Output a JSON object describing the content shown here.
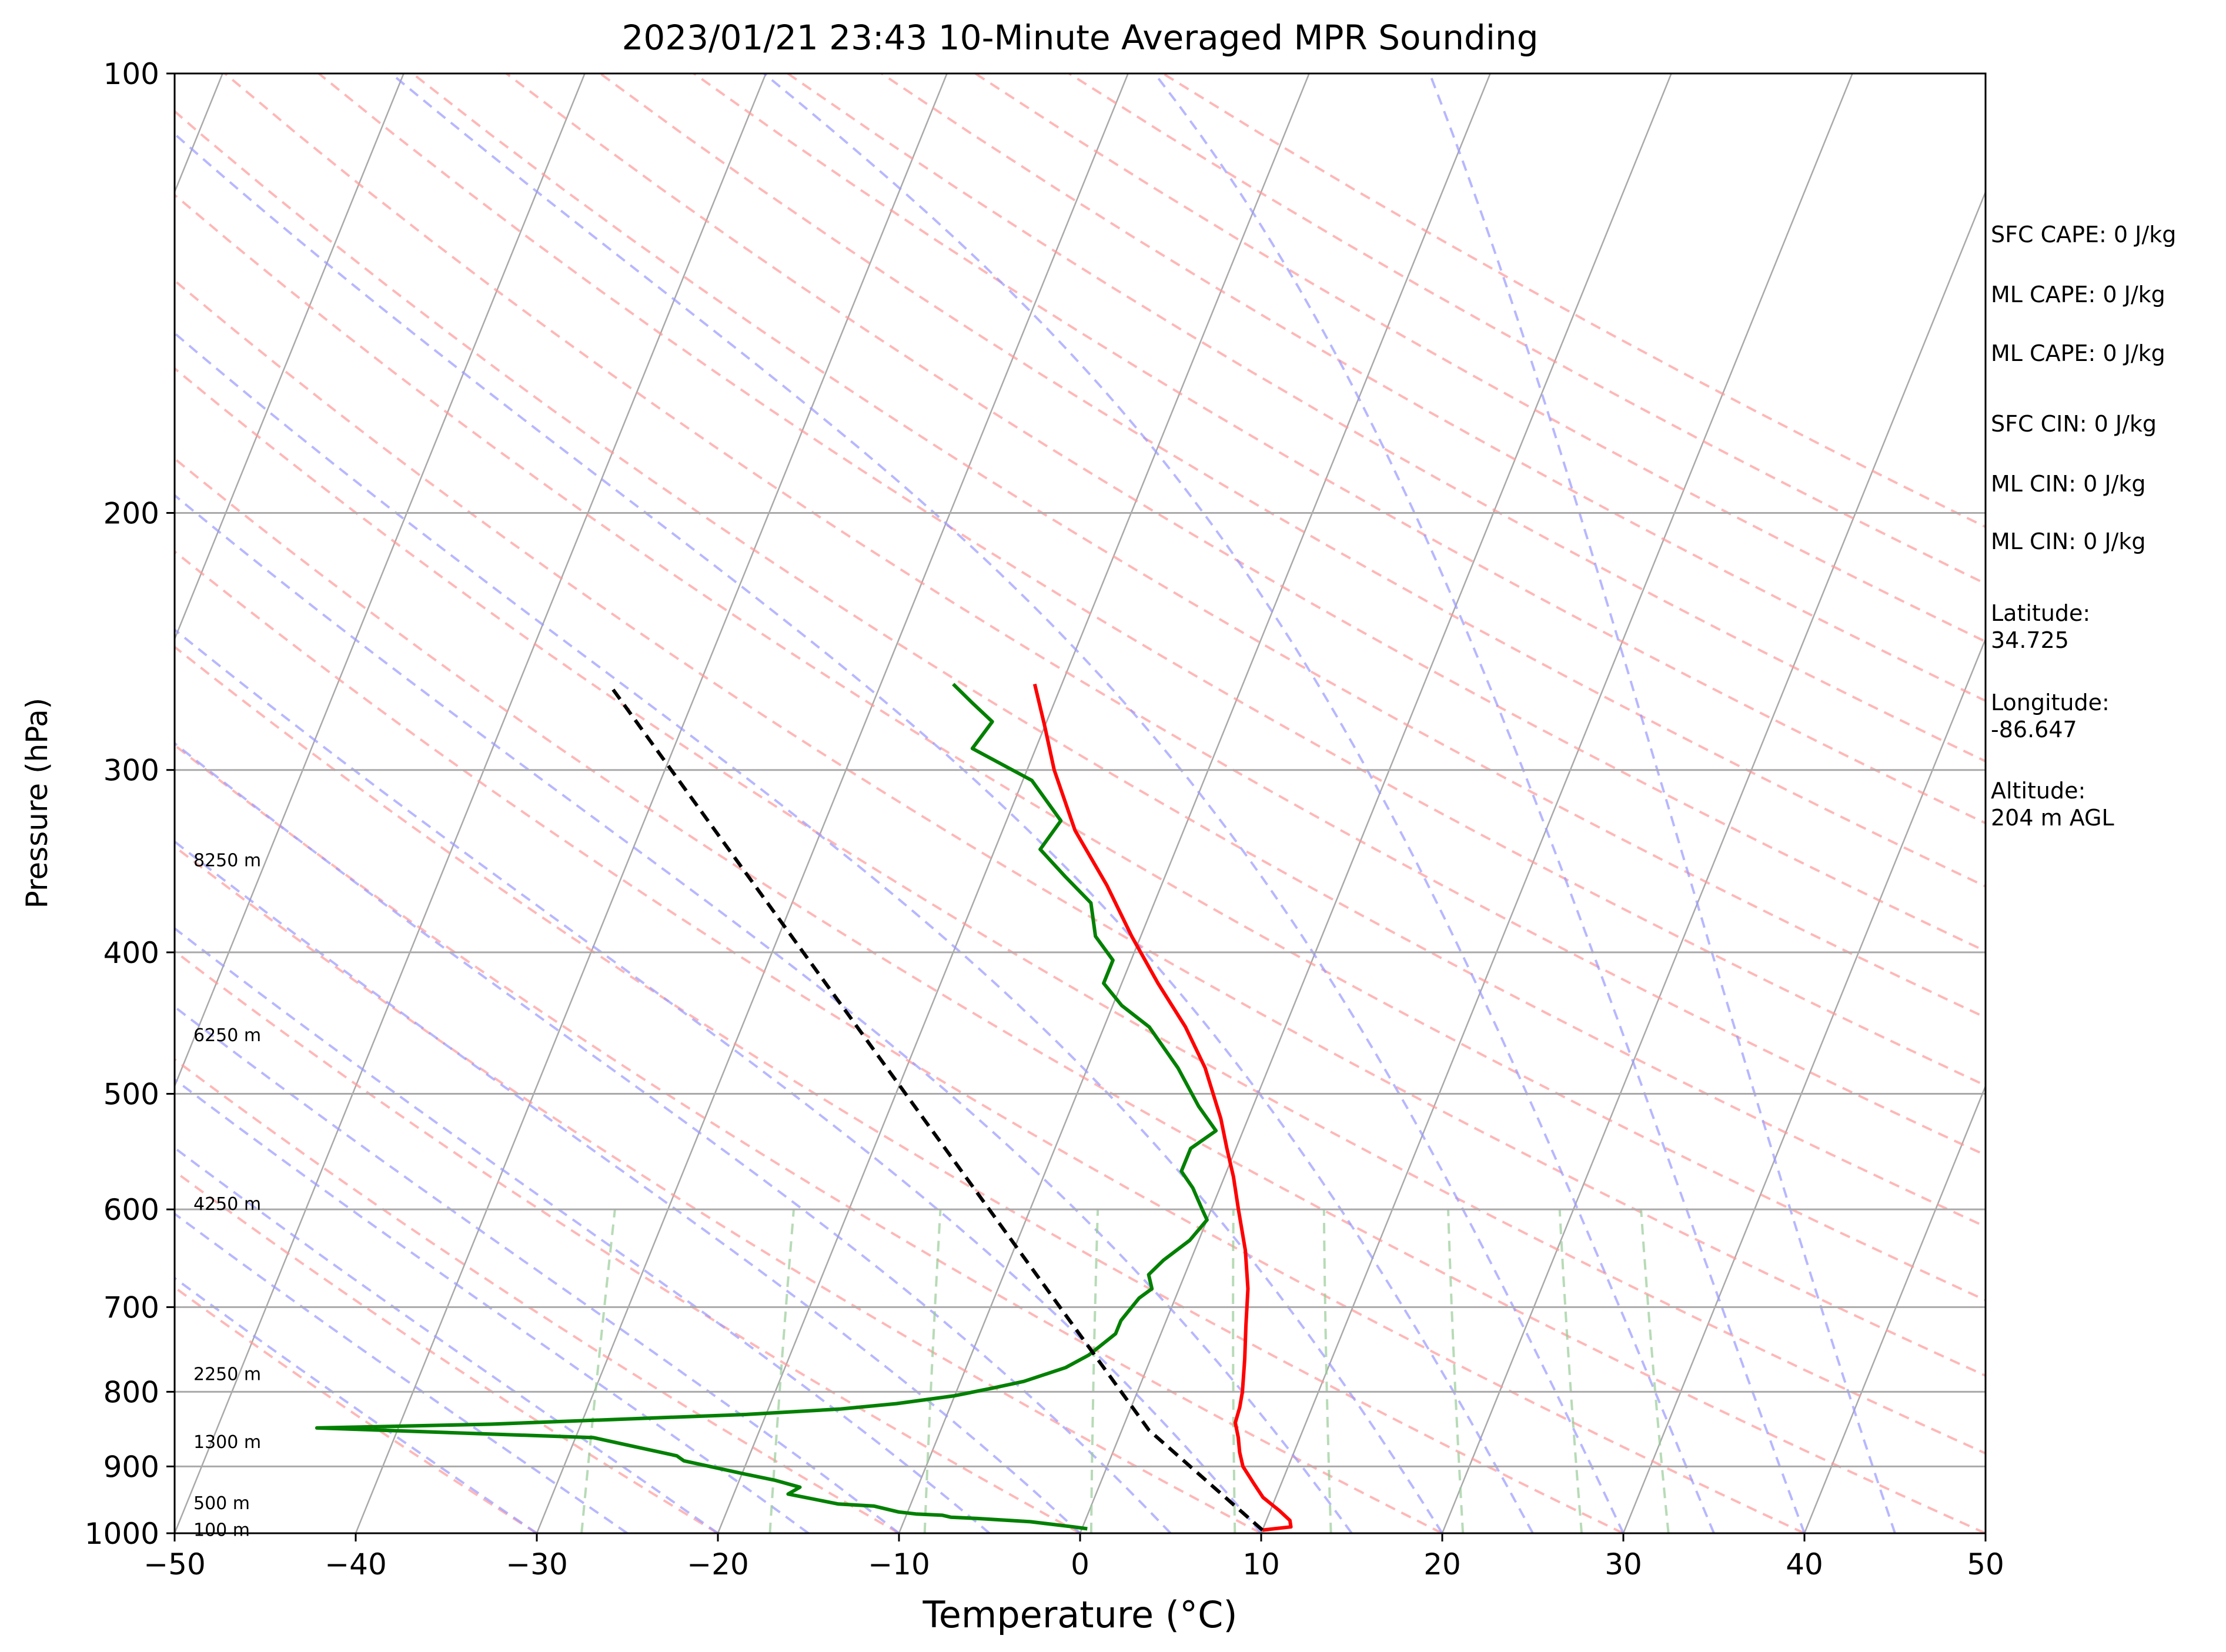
{
  "chart_data": {
    "type": "line",
    "title": "2023/01/21 23:43 10-Minute Averaged MPR Sounding",
    "xlabel": "Temperature (°C)",
    "ylabel": "Pressure (hPa)",
    "xlim": [
      -50,
      50
    ],
    "ylim": [
      1000,
      100
    ],
    "yscale": "log",
    "grid": true,
    "x_ticks": [
      -50,
      -40,
      -30,
      -20,
      -10,
      0,
      10,
      20,
      30,
      40,
      50
    ],
    "x_tick_labels": [
      "−50",
      "−40",
      "−30",
      "−20",
      "−10",
      "0",
      "10",
      "20",
      "30",
      "40",
      "50"
    ],
    "y_ticks": [
      1000,
      900,
      800,
      700,
      600,
      500,
      400,
      300,
      200,
      100
    ],
    "y_tick_labels": [
      "1000",
      "900",
      "800",
      "700",
      "600",
      "500",
      "400",
      "300",
      "200",
      "100"
    ],
    "height_labels": [
      {
        "text": "100 m",
        "p": 995
      },
      {
        "text": "500 m",
        "p": 954
      },
      {
        "text": "1300 m",
        "p": 866
      },
      {
        "text": "2250 m",
        "p": 778
      },
      {
        "text": "4250 m",
        "p": 595
      },
      {
        "text": "6250 m",
        "p": 456
      },
      {
        "text": "8250 m",
        "p": 346
      }
    ],
    "series": [
      {
        "kind": "temperature",
        "color": "#ff0000",
        "points": [
          [
            10,
            995
          ],
          [
            11.5,
            990
          ],
          [
            11.3,
            980
          ],
          [
            10.5,
            965
          ],
          [
            9.3,
            945
          ],
          [
            8.5,
            925
          ],
          [
            7.5,
            900
          ],
          [
            7,
            880
          ],
          [
            6.6,
            860
          ],
          [
            6.1,
            840
          ],
          [
            6,
            820
          ],
          [
            5.8,
            800
          ],
          [
            5.2,
            760
          ],
          [
            4.5,
            720
          ],
          [
            3.8,
            680
          ],
          [
            2.8,
            640
          ],
          [
            1.5,
            600
          ],
          [
            0.5,
            570
          ],
          [
            -0.5,
            545
          ],
          [
            -1.5,
            520
          ],
          [
            -3.5,
            480
          ],
          [
            -5.5,
            450
          ],
          [
            -8,
            420
          ],
          [
            -10.5,
            390
          ],
          [
            -13,
            360
          ],
          [
            -16,
            330
          ],
          [
            -18.5,
            300
          ],
          [
            -20,
            280
          ],
          [
            -21.5,
            262
          ]
        ]
      },
      {
        "kind": "dewpoint",
        "color": "#008000",
        "points": [
          [
            0.3,
            993
          ],
          [
            -0.5,
            990
          ],
          [
            -3,
            982
          ],
          [
            -6,
            977
          ],
          [
            -7.5,
            975
          ],
          [
            -8,
            972
          ],
          [
            -9.5,
            970
          ],
          [
            -10.5,
            967
          ],
          [
            -12,
            958
          ],
          [
            -14,
            955
          ],
          [
            -17,
            940
          ],
          [
            -16.5,
            930
          ],
          [
            -18,
            920
          ],
          [
            -20,
            910
          ],
          [
            -23.5,
            892
          ],
          [
            -24,
            885
          ],
          [
            -27,
            870
          ],
          [
            -29,
            860
          ],
          [
            -44.5,
            847
          ],
          [
            -35,
            842
          ],
          [
            -21,
            829
          ],
          [
            -16,
            822
          ],
          [
            -13,
            815
          ],
          [
            -10,
            805
          ],
          [
            -8,
            795
          ],
          [
            -6.5,
            787
          ],
          [
            -4.5,
            770
          ],
          [
            -3.5,
            755
          ],
          [
            -2.5,
            730
          ],
          [
            -2.5,
            715
          ],
          [
            -2,
            690
          ],
          [
            -1.5,
            680
          ],
          [
            -2,
            665
          ],
          [
            -1.5,
            650
          ],
          [
            -0.5,
            630
          ],
          [
            0,
            610
          ],
          [
            -0.5,
            600
          ],
          [
            -1.5,
            580
          ],
          [
            -2.5,
            565
          ],
          [
            -2.5,
            555
          ],
          [
            -2.5,
            545
          ],
          [
            -1.5,
            530
          ],
          [
            -3,
            510
          ],
          [
            -5,
            480
          ],
          [
            -7.5,
            450
          ],
          [
            -9.5,
            435
          ],
          [
            -11,
            420
          ],
          [
            -11,
            405
          ],
          [
            -12.5,
            390
          ],
          [
            -13.5,
            370
          ],
          [
            -15.5,
            355
          ],
          [
            -17.5,
            340
          ],
          [
            -17,
            325
          ],
          [
            -19.5,
            305
          ],
          [
            -23.5,
            290
          ],
          [
            -23,
            278
          ],
          [
            -24.5,
            270
          ],
          [
            -26,
            262
          ]
        ]
      },
      {
        "kind": "parcel",
        "color": "#000000",
        "dashed": true,
        "points": [
          [
            10,
            995
          ],
          [
            1.5,
            850
          ],
          [
            -45,
            262
          ]
        ]
      }
    ],
    "background_lines": {
      "isotherms_color": "#a9a9a9",
      "dry_adiabats_color": "#ff9999",
      "moist_adiabats_color": "#9999ff",
      "mixing_ratio_color": "#99cc99"
    },
    "annotations": [
      {
        "key": "sfc_cape",
        "text": "SFC CAPE: 0 J/kg"
      },
      {
        "key": "ml_cape",
        "text": "ML CAPE: 0 J/kg"
      },
      {
        "key": "ml_cape_2",
        "text": "ML CAPE: 0 J/kg"
      },
      {
        "key": "sfc_cin",
        "text": "SFC CIN: 0 J/kg"
      },
      {
        "key": "ml_cin",
        "text": "ML CIN: 0 J/kg"
      },
      {
        "key": "ml_cin_2",
        "text": "ML CIN: 0 J/kg"
      },
      {
        "key": "latitude",
        "text": "Latitude:\n34.725"
      },
      {
        "key": "longitude",
        "text": "Longitude:\n-86.647"
      },
      {
        "key": "altitude",
        "text": "Altitude:\n204 m AGL"
      }
    ]
  }
}
